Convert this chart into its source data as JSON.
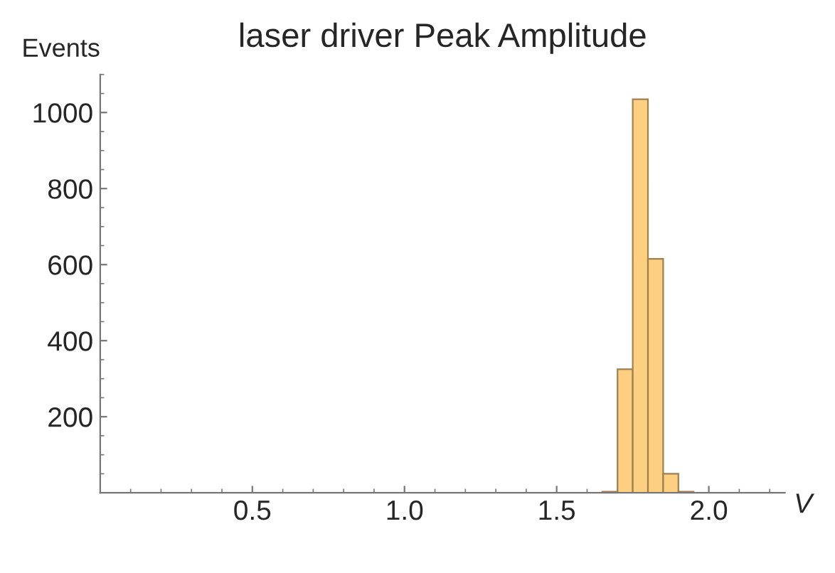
{
  "chart_data": {
    "type": "histogram",
    "title": "laser driver Peak Amplitude",
    "xlabel": "V",
    "ylabel": "Events",
    "bins": [
      1.65,
      1.7,
      1.75,
      1.8,
      1.85,
      1.9,
      1.95
    ],
    "values": [
      3,
      325,
      1035,
      615,
      50,
      3
    ],
    "color": "#fdcf80",
    "xlim": [
      0,
      2.25
    ],
    "xticks": [
      0.5,
      {
        "value": 1,
        "label": "1.0"
      },
      1.5,
      {
        "value": 2,
        "label": "2.0"
      }
    ],
    "ylim": [
      0,
      1100
    ],
    "yticks": [
      200,
      400,
      600,
      800,
      1000
    ],
    "grid": false
  }
}
